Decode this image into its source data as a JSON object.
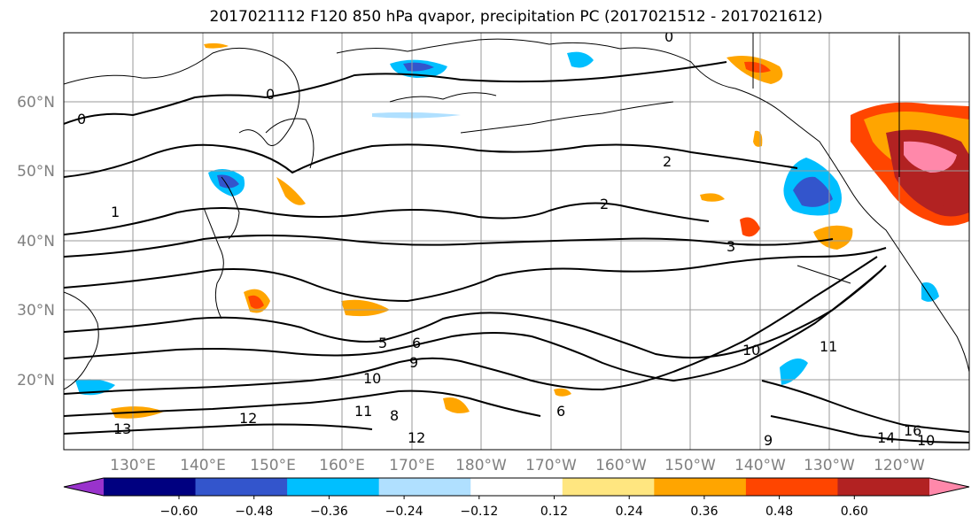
{
  "title": "2017021112 F120 850 hPa qvapor, precipitation PC (2017021512 - 2017021612)",
  "lat_labels": [
    "60°N",
    "50°N",
    "40°N",
    "30°N",
    "20°N"
  ],
  "lon_labels": [
    "130°E",
    "140°E",
    "150°E",
    "160°E",
    "170°E",
    "180°W",
    "170°W",
    "160°W",
    "150°W",
    "140°W",
    "130°W",
    "120°W"
  ],
  "contour_labels": [
    "0",
    "0",
    "0",
    "1",
    "2",
    "2",
    "3",
    "5",
    "6",
    "9",
    "10",
    "10",
    "11",
    "12",
    "13",
    "6",
    "8",
    "9",
    "12",
    "11",
    "14",
    "16",
    "10"
  ],
  "colorbar": {
    "ticks": [
      "−0.60",
      "−0.48",
      "−0.36",
      "−0.24",
      "−0.12",
      "0.12",
      "0.24",
      "0.36",
      "0.48",
      "0.60"
    ],
    "colors": [
      "#9933cc",
      "#000080",
      "#3355cc",
      "#00bfff",
      "#b0e0ff",
      "#ffffff",
      "#ffe680",
      "#ffa500",
      "#ff4500",
      "#b22222",
      "#ff88aa"
    ]
  },
  "map_data": {
    "lat_range": [
      10,
      70
    ],
    "lon_range": [
      120,
      250
    ],
    "lat_ticks": [
      60,
      50,
      40,
      30,
      20
    ],
    "lon_ticks": [
      130,
      140,
      150,
      160,
      170,
      180,
      190,
      200,
      210,
      220,
      230,
      240
    ]
  }
}
